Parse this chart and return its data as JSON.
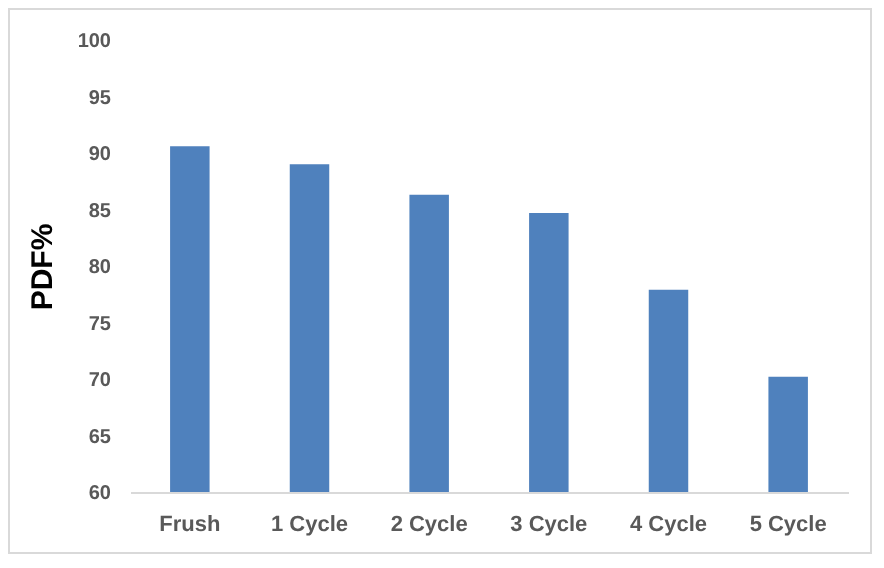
{
  "chart_data": {
    "type": "bar",
    "ylabel": "PDF%",
    "categories": [
      "Frush",
      "1 Cycle",
      "2 Cycle",
      "3 Cycle",
      "4 Cycle",
      "5 Cycle"
    ],
    "values": [
      90.6,
      89.0,
      86.3,
      84.7,
      77.9,
      70.2
    ],
    "color": "#4f81bd",
    "ylim": [
      60,
      100
    ],
    "yticks": [
      60,
      65,
      70,
      75,
      80,
      85,
      90,
      95,
      100
    ],
    "grid": false
  }
}
